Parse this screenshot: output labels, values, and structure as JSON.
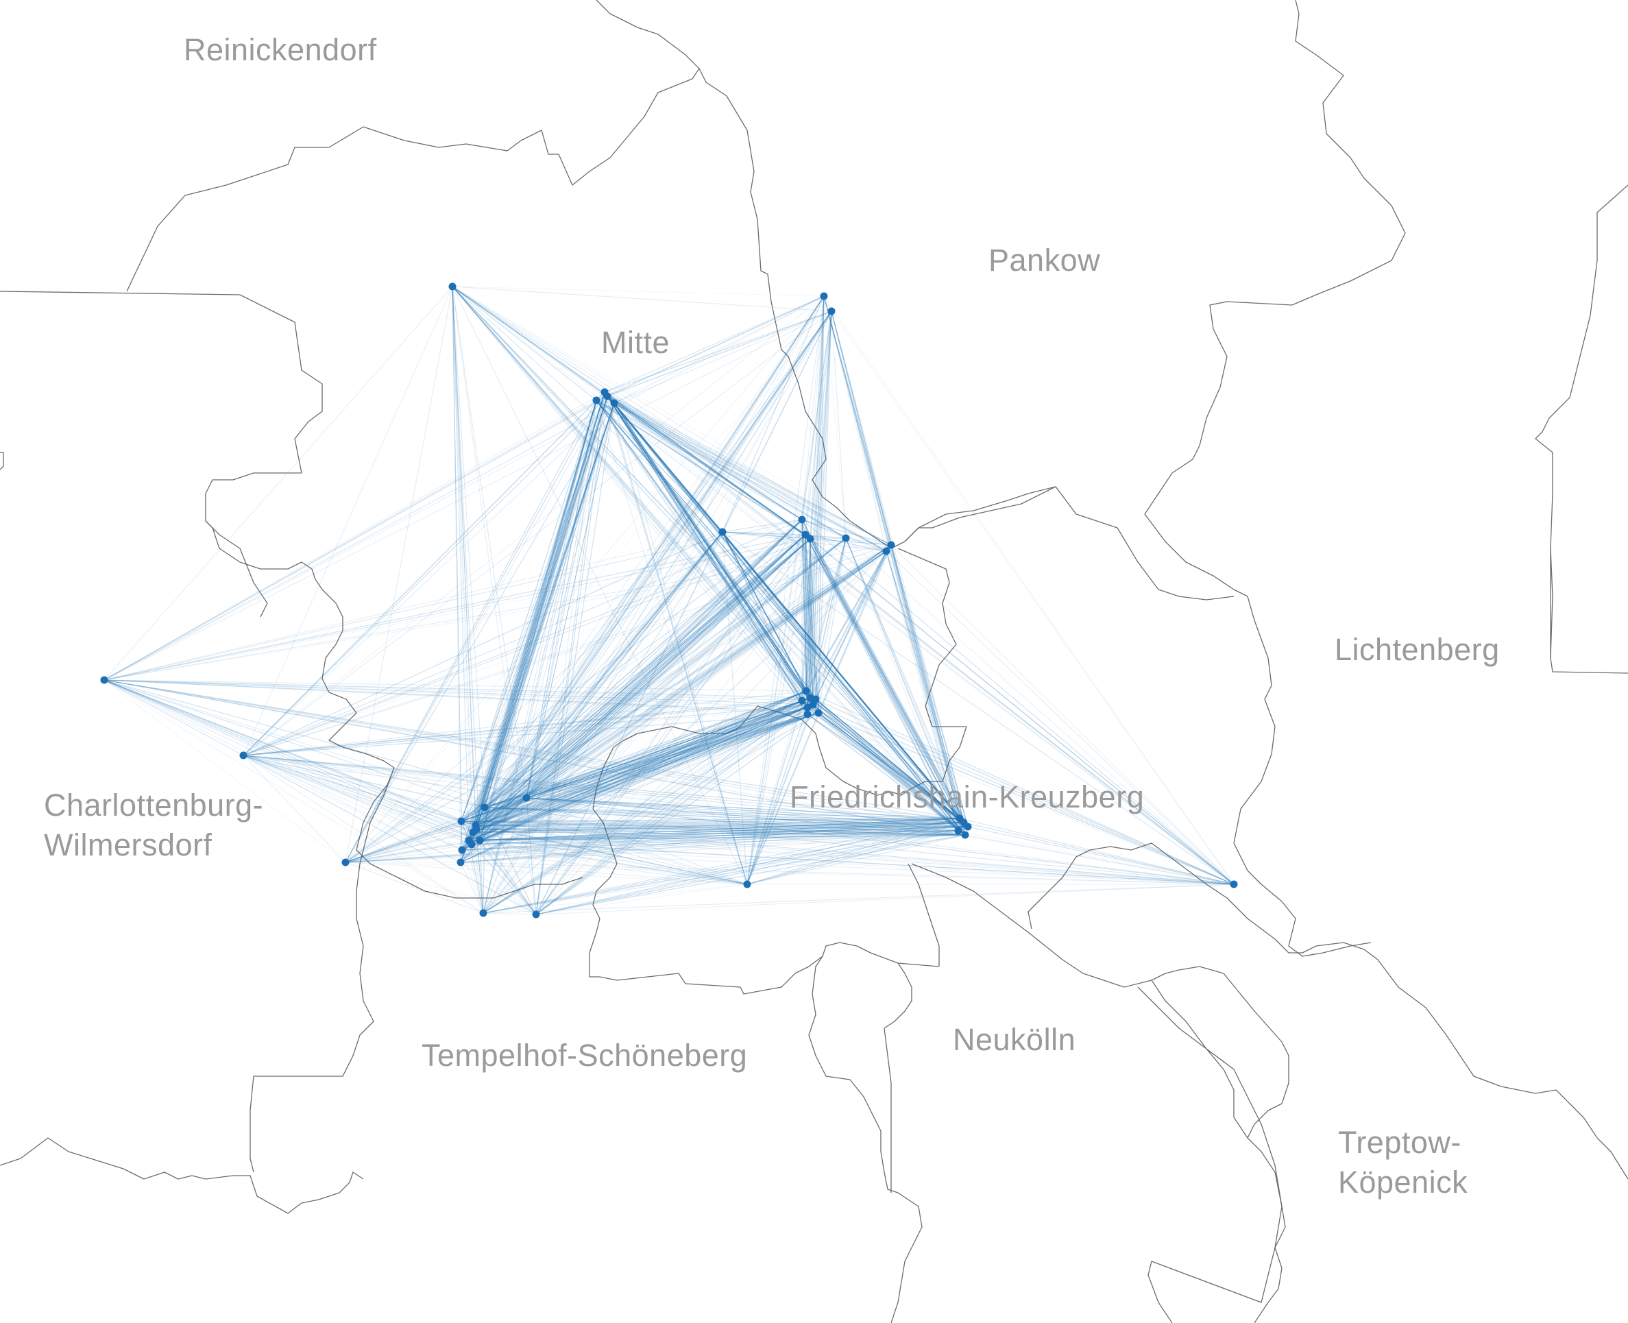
{
  "colors": {
    "background": "#ffffff",
    "boundary": "#6b6b6b",
    "label": "#9a9a9a",
    "flow_line": "#2a7ab8",
    "station": "#1d6fb5"
  },
  "districts": [
    {
      "id": "reinickendorf",
      "lines": [
        "Reinickendorf"
      ]
    },
    {
      "id": "pankow",
      "lines": [
        "Pankow"
      ]
    },
    {
      "id": "mitte",
      "lines": [
        "Mitte"
      ]
    },
    {
      "id": "lichtenberg",
      "lines": [
        "Lichtenberg"
      ]
    },
    {
      "id": "charlottenburg-wilmersdorf",
      "lines": [
        "Charlottenburg-",
        "Wilmersdorf"
      ]
    },
    {
      "id": "friedrichshain-kreuzberg",
      "lines": [
        "Friedrichshain-Kreuzberg"
      ]
    },
    {
      "id": "tempelhof-schoeneberg",
      "lines": [
        "Tempelhof-Schöneberg"
      ]
    },
    {
      "id": "neukoelln",
      "lines": [
        "Neukölln"
      ]
    },
    {
      "id": "treptow-koepenick",
      "lines": [
        "Treptow-",
        "Köpenick"
      ]
    }
  ],
  "legend": "none",
  "station_count": 45
}
